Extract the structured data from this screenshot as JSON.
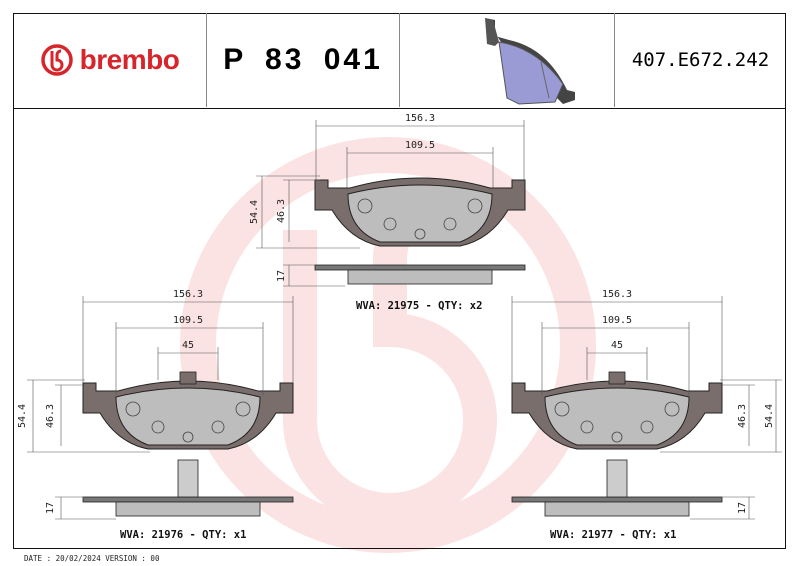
{
  "header": {
    "brand": "brembo",
    "part_number": "P 83 041",
    "reference": "407.E672.242",
    "brand_color": "#d7262b",
    "product_image": "brake-pad-3d-render"
  },
  "views": {
    "top": {
      "dims": {
        "width_total": "156.3",
        "width_inner": "109.5",
        "height_total": "54.4",
        "height_inner": "46.3",
        "thickness": "17"
      },
      "caption": "WVA: 21975 - QTY: x2"
    },
    "left": {
      "dims": {
        "width_total": "156.3",
        "width_inner": "109.5",
        "width_sensor": "45",
        "height_total": "54.4",
        "height_inner": "46.3",
        "thickness": "17"
      },
      "caption": "WVA: 21976 - QTY: x1"
    },
    "right": {
      "dims": {
        "width_total": "156.3",
        "width_inner": "109.5",
        "width_sensor": "45",
        "height_total": "54.4",
        "height_inner": "46.3",
        "thickness": "17"
      },
      "caption": "WVA: 21977 - QTY: x1"
    }
  },
  "watermark": "brembo-logo",
  "footer": "DATE : 20/02/2024 VERSION : 00"
}
